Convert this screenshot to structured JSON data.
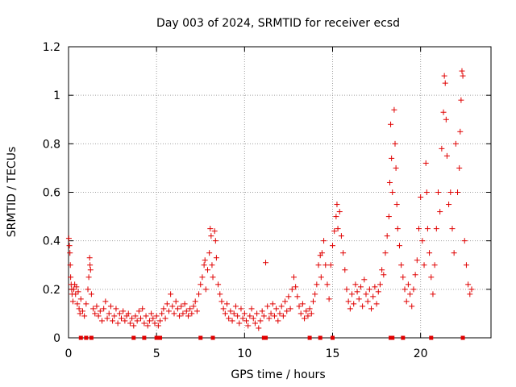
{
  "chart_data": {
    "type": "scatter",
    "title": "Day 003 of 2024, SRMTID for receiver ecsd",
    "xlabel": "GPS time / hours",
    "ylabel": "SRMTID / TECUs",
    "xlim": [
      0,
      24
    ],
    "ylim": [
      0,
      1.2
    ],
    "x_ticks": [
      0,
      5,
      10,
      15,
      20
    ],
    "x_tick_labels": [
      "0",
      "5",
      "10",
      "15",
      "20"
    ],
    "y_ticks": [
      0,
      0.2,
      0.4,
      0.6,
      0.8,
      1.0,
      1.2
    ],
    "y_tick_labels": [
      "0",
      "0.2",
      "0.4",
      "0.6",
      "0.8",
      "1",
      "1.2"
    ],
    "grid": true,
    "marker": "plus",
    "color": "#e00000",
    "series": [
      {
        "name": "SRMTID",
        "points": [
          [
            0.02,
            0.41
          ],
          [
            0.05,
            0.38
          ],
          [
            0.08,
            0.35
          ],
          [
            0.1,
            0.3
          ],
          [
            0.12,
            0.25
          ],
          [
            0.15,
            0.22
          ],
          [
            0.18,
            0.2
          ],
          [
            0.2,
            0.18
          ],
          [
            0.25,
            0.15
          ],
          [
            0.3,
            0.2
          ],
          [
            0.35,
            0.22
          ],
          [
            0.4,
            0.18
          ],
          [
            0.45,
            0.21
          ],
          [
            0.5,
            0.14
          ],
          [
            0.55,
            0.19
          ],
          [
            0.6,
            0.12
          ],
          [
            0.65,
            0.1
          ],
          [
            0.7,
            0.16
          ],
          [
            0.8,
            0.11
          ],
          [
            0.9,
            0.09
          ],
          [
            1.0,
            0.14
          ],
          [
            1.1,
            0.2
          ],
          [
            1.15,
            0.25
          ],
          [
            1.2,
            0.33
          ],
          [
            1.22,
            0.3
          ],
          [
            1.25,
            0.28
          ],
          [
            1.3,
            0.18
          ],
          [
            1.4,
            0.12
          ],
          [
            1.5,
            0.1
          ],
          [
            1.6,
            0.13
          ],
          [
            1.7,
            0.09
          ],
          [
            1.8,
            0.11
          ],
          [
            1.9,
            0.07
          ],
          [
            2.0,
            0.12
          ],
          [
            2.1,
            0.15
          ],
          [
            2.2,
            0.08
          ],
          [
            2.3,
            0.1
          ],
          [
            2.4,
            0.13
          ],
          [
            2.5,
            0.07
          ],
          [
            2.6,
            0.09
          ],
          [
            2.7,
            0.12
          ],
          [
            2.8,
            0.06
          ],
          [
            2.9,
            0.1
          ],
          [
            3.0,
            0.08
          ],
          [
            3.1,
            0.11
          ],
          [
            3.2,
            0.07
          ],
          [
            3.3,
            0.09
          ],
          [
            3.4,
            0.1
          ],
          [
            3.5,
            0.06
          ],
          [
            3.6,
            0.08
          ],
          [
            3.7,
            0.05
          ],
          [
            3.8,
            0.09
          ],
          [
            3.9,
            0.07
          ],
          [
            4.0,
            0.11
          ],
          [
            4.1,
            0.08
          ],
          [
            4.2,
            0.12
          ],
          [
            4.3,
            0.06
          ],
          [
            4.4,
            0.09
          ],
          [
            4.5,
            0.05
          ],
          [
            4.6,
            0.07
          ],
          [
            4.7,
            0.1
          ],
          [
            4.8,
            0.08
          ],
          [
            4.9,
            0.06
          ],
          [
            5.0,
            0.09
          ],
          [
            5.1,
            0.05
          ],
          [
            5.2,
            0.07
          ],
          [
            5.3,
            0.1
          ],
          [
            5.4,
            0.12
          ],
          [
            5.5,
            0.08
          ],
          [
            5.6,
            0.14
          ],
          [
            5.7,
            0.11
          ],
          [
            5.8,
            0.18
          ],
          [
            5.9,
            0.13
          ],
          [
            6.0,
            0.1
          ],
          [
            6.1,
            0.15
          ],
          [
            6.2,
            0.12
          ],
          [
            6.3,
            0.09
          ],
          [
            6.4,
            0.13
          ],
          [
            6.5,
            0.1
          ],
          [
            6.6,
            0.14
          ],
          [
            6.7,
            0.11
          ],
          [
            6.8,
            0.09
          ],
          [
            6.9,
            0.12
          ],
          [
            7.0,
            0.1
          ],
          [
            7.1,
            0.13
          ],
          [
            7.2,
            0.15
          ],
          [
            7.3,
            0.11
          ],
          [
            7.4,
            0.18
          ],
          [
            7.5,
            0.22
          ],
          [
            7.6,
            0.25
          ],
          [
            7.7,
            0.3
          ],
          [
            7.75,
            0.32
          ],
          [
            7.8,
            0.2
          ],
          [
            7.9,
            0.28
          ],
          [
            8.0,
            0.35
          ],
          [
            8.05,
            0.45
          ],
          [
            8.1,
            0.42
          ],
          [
            8.15,
            0.3
          ],
          [
            8.2,
            0.25
          ],
          [
            8.3,
            0.44
          ],
          [
            8.35,
            0.4
          ],
          [
            8.4,
            0.33
          ],
          [
            8.5,
            0.22
          ],
          [
            8.6,
            0.18
          ],
          [
            8.7,
            0.15
          ],
          [
            8.8,
            0.12
          ],
          [
            8.9,
            0.1
          ],
          [
            9.0,
            0.14
          ],
          [
            9.1,
            0.08
          ],
          [
            9.2,
            0.11
          ],
          [
            9.3,
            0.07
          ],
          [
            9.4,
            0.1
          ],
          [
            9.5,
            0.13
          ],
          [
            9.6,
            0.09
          ],
          [
            9.7,
            0.06
          ],
          [
            9.8,
            0.12
          ],
          [
            9.9,
            0.08
          ],
          [
            10.0,
            0.1
          ],
          [
            10.1,
            0.07
          ],
          [
            10.2,
            0.05
          ],
          [
            10.3,
            0.09
          ],
          [
            10.4,
            0.12
          ],
          [
            10.5,
            0.08
          ],
          [
            10.6,
            0.06
          ],
          [
            10.7,
            0.1
          ],
          [
            10.8,
            0.04
          ],
          [
            10.9,
            0.07
          ],
          [
            11.0,
            0.11
          ],
          [
            11.1,
            0.09
          ],
          [
            11.2,
            0.31
          ],
          [
            11.3,
            0.13
          ],
          [
            11.4,
            0.08
          ],
          [
            11.5,
            0.1
          ],
          [
            11.6,
            0.14
          ],
          [
            11.7,
            0.09
          ],
          [
            11.8,
            0.12
          ],
          [
            11.9,
            0.07
          ],
          [
            12.0,
            0.1
          ],
          [
            12.1,
            0.13
          ],
          [
            12.2,
            0.09
          ],
          [
            12.3,
            0.15
          ],
          [
            12.4,
            0.11
          ],
          [
            12.5,
            0.17
          ],
          [
            12.6,
            0.12
          ],
          [
            12.7,
            0.2
          ],
          [
            12.8,
            0.25
          ],
          [
            12.9,
            0.21
          ],
          [
            13.0,
            0.17
          ],
          [
            13.1,
            0.13
          ],
          [
            13.2,
            0.1
          ],
          [
            13.3,
            0.14
          ],
          [
            13.4,
            0.08
          ],
          [
            13.5,
            0.11
          ],
          [
            13.6,
            0.09
          ],
          [
            13.7,
            0.12
          ],
          [
            13.8,
            0.1
          ],
          [
            13.9,
            0.15
          ],
          [
            14.0,
            0.18
          ],
          [
            14.1,
            0.22
          ],
          [
            14.2,
            0.3
          ],
          [
            14.3,
            0.34
          ],
          [
            14.35,
            0.25
          ],
          [
            14.4,
            0.35
          ],
          [
            14.5,
            0.4
          ],
          [
            14.6,
            0.3
          ],
          [
            14.7,
            0.22
          ],
          [
            14.8,
            0.16
          ],
          [
            14.9,
            0.3
          ],
          [
            15.0,
            0.38
          ],
          [
            15.1,
            0.44
          ],
          [
            15.2,
            0.5
          ],
          [
            15.25,
            0.55
          ],
          [
            15.3,
            0.45
          ],
          [
            15.4,
            0.52
          ],
          [
            15.5,
            0.42
          ],
          [
            15.6,
            0.35
          ],
          [
            15.7,
            0.28
          ],
          [
            15.8,
            0.2
          ],
          [
            15.9,
            0.15
          ],
          [
            16.0,
            0.12
          ],
          [
            16.1,
            0.18
          ],
          [
            16.2,
            0.14
          ],
          [
            16.3,
            0.22
          ],
          [
            16.4,
            0.19
          ],
          [
            16.5,
            0.16
          ],
          [
            16.6,
            0.21
          ],
          [
            16.7,
            0.13
          ],
          [
            16.8,
            0.24
          ],
          [
            16.9,
            0.18
          ],
          [
            17.0,
            0.15
          ],
          [
            17.1,
            0.2
          ],
          [
            17.2,
            0.12
          ],
          [
            17.3,
            0.17
          ],
          [
            17.4,
            0.21
          ],
          [
            17.5,
            0.14
          ],
          [
            17.6,
            0.19
          ],
          [
            17.7,
            0.22
          ],
          [
            17.8,
            0.28
          ],
          [
            17.9,
            0.26
          ],
          [
            18.0,
            0.35
          ],
          [
            18.1,
            0.42
          ],
          [
            18.2,
            0.5
          ],
          [
            18.25,
            0.64
          ],
          [
            18.3,
            0.88
          ],
          [
            18.35,
            0.74
          ],
          [
            18.4,
            0.6
          ],
          [
            18.5,
            0.94
          ],
          [
            18.55,
            0.8
          ],
          [
            18.6,
            0.7
          ],
          [
            18.65,
            0.55
          ],
          [
            18.7,
            0.45
          ],
          [
            18.8,
            0.38
          ],
          [
            18.9,
            0.3
          ],
          [
            19.0,
            0.25
          ],
          [
            19.1,
            0.2
          ],
          [
            19.2,
            0.15
          ],
          [
            19.3,
            0.22
          ],
          [
            19.4,
            0.18
          ],
          [
            19.5,
            0.13
          ],
          [
            19.6,
            0.2
          ],
          [
            19.7,
            0.26
          ],
          [
            19.8,
            0.32
          ],
          [
            19.9,
            0.45
          ],
          [
            20.0,
            0.58
          ],
          [
            20.1,
            0.4
          ],
          [
            20.2,
            0.3
          ],
          [
            20.3,
            0.72
          ],
          [
            20.35,
            0.6
          ],
          [
            20.4,
            0.45
          ],
          [
            20.5,
            0.35
          ],
          [
            20.6,
            0.25
          ],
          [
            20.7,
            0.18
          ],
          [
            20.8,
            0.3
          ],
          [
            20.9,
            0.45
          ],
          [
            21.0,
            0.6
          ],
          [
            21.1,
            0.52
          ],
          [
            21.2,
            0.78
          ],
          [
            21.3,
            0.93
          ],
          [
            21.35,
            1.08
          ],
          [
            21.4,
            1.05
          ],
          [
            21.45,
            0.9
          ],
          [
            21.5,
            0.75
          ],
          [
            21.6,
            0.55
          ],
          [
            21.7,
            0.6
          ],
          [
            21.8,
            0.45
          ],
          [
            21.9,
            0.35
          ],
          [
            22.0,
            0.8
          ],
          [
            22.1,
            0.6
          ],
          [
            22.2,
            0.7
          ],
          [
            22.25,
            0.85
          ],
          [
            22.3,
            0.98
          ],
          [
            22.35,
            1.1
          ],
          [
            22.4,
            1.08
          ],
          [
            22.5,
            0.4
          ],
          [
            22.6,
            0.3
          ],
          [
            22.7,
            0.22
          ],
          [
            22.8,
            0.18
          ],
          [
            22.9,
            0.2
          ]
        ]
      }
    ],
    "bottom_markers": [
      0.7,
      1.0,
      1.3,
      3.7,
      4.3,
      5.0,
      5.2,
      7.5,
      8.2,
      11.1,
      11.2,
      13.7,
      14.3,
      15.0,
      18.3,
      18.4,
      19.0,
      20.6,
      22.4
    ]
  }
}
